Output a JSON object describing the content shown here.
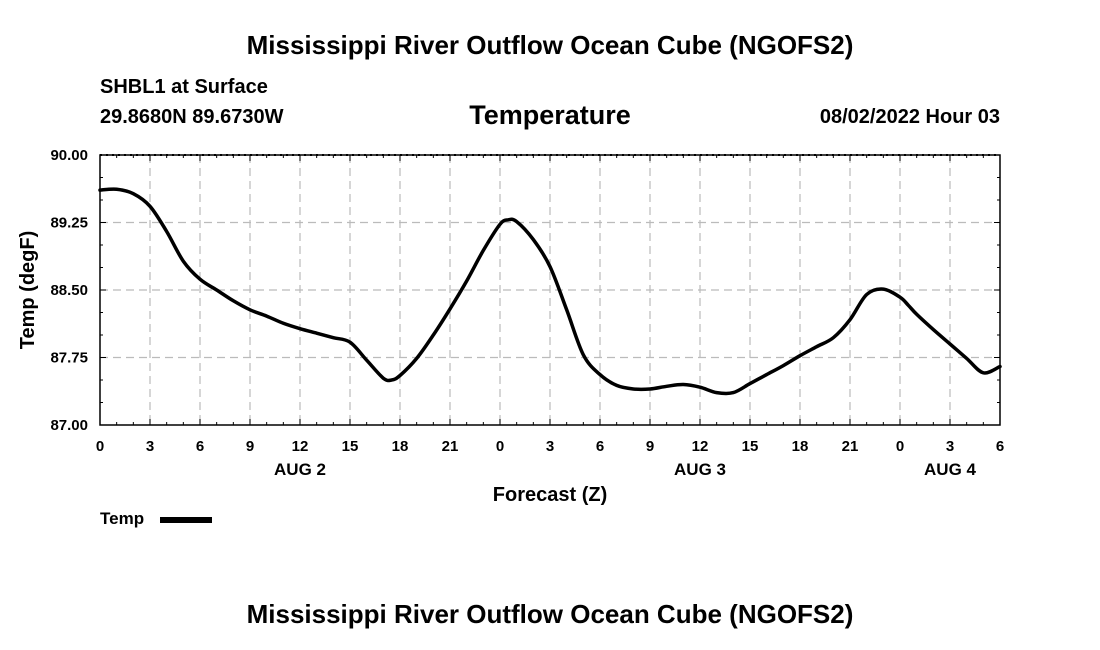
{
  "header": {
    "title": "Mississippi River Outflow Ocean Cube (NGOFS2)",
    "station": "SHBL1 at Surface",
    "coords": "29.8680N  89.6730W",
    "variable": "Temperature",
    "datetime": "08/02/2022 Hour 03"
  },
  "footer": {
    "title": "Mississippi River Outflow Ocean Cube (NGOFS2)"
  },
  "legend": {
    "label": "Temp"
  },
  "chart_data": {
    "type": "line",
    "title": "Temperature",
    "xlabel": "Forecast (Z)",
    "ylabel": "Temp (degF)",
    "xlim": [
      0,
      54
    ],
    "ylim": [
      87.0,
      90.0
    ],
    "grid": true,
    "yticks": [
      87.0,
      87.75,
      88.5,
      89.25,
      90.0
    ],
    "ytick_labels": [
      "87.00",
      "87.75",
      "88.50",
      "89.25",
      "90.00"
    ],
    "xticks": [
      0,
      3,
      6,
      9,
      12,
      15,
      18,
      21,
      24,
      27,
      30,
      33,
      36,
      39,
      42,
      45,
      48,
      51,
      54
    ],
    "xtick_labels": [
      "0",
      "3",
      "6",
      "9",
      "12",
      "15",
      "18",
      "21",
      "0",
      "3",
      "6",
      "9",
      "12",
      "15",
      "18",
      "21",
      "0",
      "3",
      "6"
    ],
    "date_labels": [
      {
        "x": 12,
        "label": "AUG 2"
      },
      {
        "x": 36,
        "label": "AUG 3"
      },
      {
        "x": 51,
        "label": "AUG 4"
      }
    ],
    "series": [
      {
        "name": "Temp",
        "color": "#000000",
        "x": [
          0,
          1,
          2,
          3,
          4,
          5,
          6,
          7,
          8,
          9,
          10,
          11,
          12,
          13,
          14,
          15,
          16,
          17,
          17.5,
          18,
          19,
          20,
          21,
          22,
          23,
          24,
          24.5,
          25,
          26,
          27,
          28,
          29,
          30,
          31,
          32,
          33,
          34,
          35,
          36,
          37,
          38,
          39,
          40,
          41,
          42,
          43,
          44,
          45,
          46,
          47,
          48,
          48.5,
          49,
          50,
          51,
          52,
          53,
          54
        ],
        "values": [
          89.61,
          89.62,
          89.57,
          89.43,
          89.15,
          88.82,
          88.62,
          88.5,
          88.38,
          88.28,
          88.21,
          88.13,
          88.07,
          88.02,
          87.97,
          87.92,
          87.72,
          87.52,
          87.5,
          87.55,
          87.74,
          88.0,
          88.29,
          88.6,
          88.94,
          89.23,
          89.28,
          89.26,
          89.06,
          88.76,
          88.28,
          87.78,
          87.56,
          87.44,
          87.4,
          87.4,
          87.43,
          87.45,
          87.42,
          87.36,
          87.36,
          87.46,
          87.56,
          87.66,
          87.77,
          87.87,
          87.97,
          88.17,
          88.45,
          88.51,
          88.42,
          88.33,
          88.23,
          88.06,
          87.9,
          87.74,
          87.58,
          87.65
        ]
      }
    ]
  }
}
